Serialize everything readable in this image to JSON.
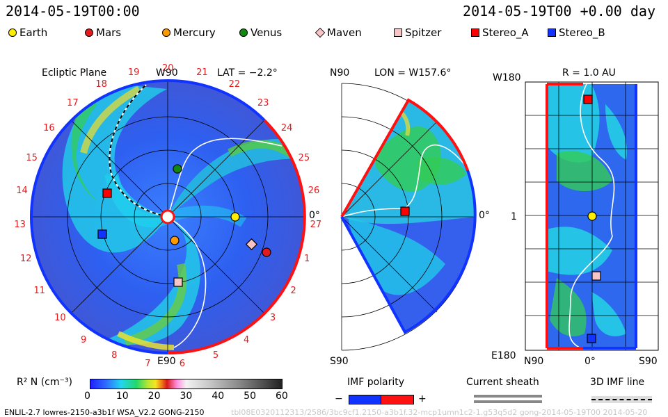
{
  "header": {
    "left_time": "2014-05-19T00:00",
    "right_time": "2014-05-19T00 +0.00 day"
  },
  "legend": [
    {
      "label": "Earth",
      "shape": "circle",
      "color": "#ffee00"
    },
    {
      "label": "Mars",
      "shape": "circle",
      "color": "#e41a1c"
    },
    {
      "label": "Mercury",
      "shape": "circle",
      "color": "#ff9900"
    },
    {
      "label": "Venus",
      "shape": "circle",
      "color": "#118811"
    },
    {
      "label": "Maven",
      "shape": "diamond",
      "color": "#f7c5c5"
    },
    {
      "label": "Spitzer",
      "shape": "square",
      "color": "#f7c5c5"
    },
    {
      "label": "Stereo_A",
      "shape": "square",
      "color": "#ff0000"
    },
    {
      "label": "Stereo_B",
      "shape": "square",
      "color": "#1133ff"
    }
  ],
  "ecliptic": {
    "title": "Ecliptic Plane",
    "top_label": "W90",
    "bottom_label": "E90",
    "lat_label": "LAT = −2.2°",
    "zero_label": "0°",
    "carrington_numbers": [
      "19",
      "20",
      "21",
      "22",
      "23",
      "24",
      "25",
      "26",
      "27",
      "1",
      "2",
      "3",
      "4",
      "5",
      "6",
      "7",
      "8",
      "9",
      "10",
      "11",
      "12",
      "13",
      "14",
      "15",
      "16",
      "17",
      "18"
    ]
  },
  "meridional": {
    "top_left": "N90",
    "bottom_left": "S90",
    "lon_label": "LON = W157.6°",
    "zero_label": "0°"
  },
  "radial": {
    "title": "R = 1.0 AU",
    "top_left": "W180",
    "bottom_left": "E180",
    "mid_left": "1",
    "bottom_labels": [
      "N90",
      "0°",
      "S90"
    ]
  },
  "colorbar": {
    "label": "R² N (cm⁻³)",
    "ticks": [
      "0",
      "10",
      "20",
      "30",
      "40",
      "50",
      "60"
    ],
    "range": [
      0,
      60
    ]
  },
  "imf": {
    "title": "IMF polarity",
    "minus": "−",
    "plus": "+",
    "sheath_title": "Current sheath",
    "line_title": "3D IMF line"
  },
  "footer": {
    "left": "ENLIL-2.7 lowres-2150-a3b1f WSA_V2.2 GONG-2150",
    "right": "tbl08E0320112313/2586/3bc9cf1.2150-a3b1f.32-mcp1umn1c2-1.g53q5d2 gong-2014-05-19T00   2014-05-20"
  }
}
